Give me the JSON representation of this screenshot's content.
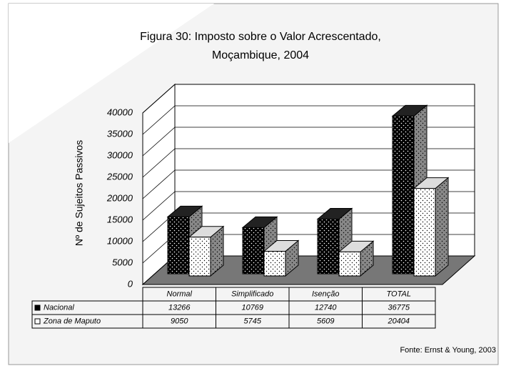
{
  "chart_data": {
    "type": "bar3d",
    "title": [
      "Figura 30: Imposto sobre o Valor Acrescentado,",
      "Moçambique, 2004"
    ],
    "y_label": "Nº de Sujeitos Passivos",
    "categories": [
      "Normal",
      "Simplificado",
      "Isenção",
      "TOTAL"
    ],
    "series": [
      {
        "name": "Nacional",
        "color": "#000000",
        "values": [
          13266,
          10769,
          12740,
          36775
        ]
      },
      {
        "name": "Zona de Maputo",
        "color": "#ffffff",
        "values": [
          9050,
          5745,
          5609,
          20404
        ]
      }
    ],
    "ylim": [
      0,
      40000
    ],
    "yticks": [
      0,
      5000,
      10000,
      15000,
      20000,
      25000,
      30000,
      35000,
      40000
    ],
    "grid": true,
    "source": "Fonte: Ernst & Young, 2003"
  }
}
